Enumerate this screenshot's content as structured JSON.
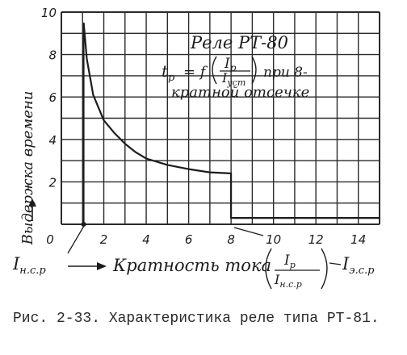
{
  "chart_data": {
    "type": "line",
    "title": "Реле РТ-80",
    "formula": {
      "lhs": "t",
      "lhs_sub": "р",
      "fn": "= f",
      "num": "I",
      "num_sub": "р",
      "den": "I",
      "den_sub": "уст",
      "tail1": "при 8-",
      "tail2": "кратной отсечке"
    },
    "ylabel": "Выдержка времени",
    "xlabel": {
      "text": "Кратность тока",
      "num": "I",
      "num_sub": "р",
      "den": "I",
      "den_sub": "н.с.р"
    },
    "x_start_label": {
      "main": "I",
      "sub": "н.с.р"
    },
    "x_end_label": {
      "main": "I",
      "sub": "э.с.р"
    },
    "x_ticks": [
      "0",
      "2",
      "4",
      "6",
      "8",
      "10",
      "12",
      "14"
    ],
    "y_ticks": [
      "2",
      "4",
      "6",
      "8",
      "10"
    ],
    "xlim": [
      0,
      15
    ],
    "ylim": [
      0,
      10
    ],
    "grid": true,
    "series": [
      {
        "x": [
          1.05,
          1.2,
          1.5,
          2,
          2.5,
          3,
          3.5,
          4,
          5,
          6,
          7,
          8,
          8,
          15
        ],
        "y": [
          9.5,
          7.8,
          6.1,
          4.9,
          4.3,
          3.8,
          3.4,
          3.1,
          2.8,
          2.6,
          2.45,
          2.4,
          0.3,
          0.3
        ]
      }
    ]
  },
  "caption": "Рис. 2-33. Характеристика реле типа РТ-81."
}
